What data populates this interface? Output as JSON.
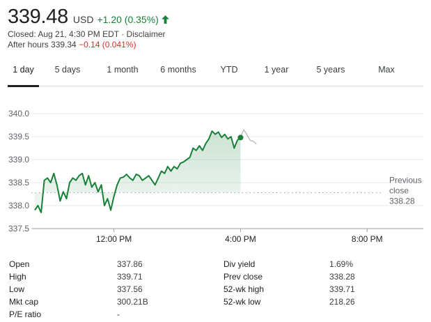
{
  "header": {
    "price": "339.48",
    "currency": "USD",
    "change": "+1.20 (0.35%)",
    "up_color": "#188038",
    "closed_line": "Closed: Aug 21, 4:30 PM EDT · Disclaimer",
    "after_hours_label": "After hours 339.34",
    "after_hours_change": "−0.14 (0.041%)",
    "down_color": "#d93025"
  },
  "tabs": [
    {
      "label": "1 day",
      "active": true
    },
    {
      "label": "5 days",
      "active": false
    },
    {
      "label": "1 month",
      "active": false
    },
    {
      "label": "6 months",
      "active": false
    },
    {
      "label": "YTD",
      "active": false
    },
    {
      "label": "1 year",
      "active": false
    },
    {
      "label": "5 years",
      "active": false
    },
    {
      "label": "Max",
      "active": false
    }
  ],
  "chart_data": {
    "type": "line",
    "yticks": [
      "340.0",
      "339.5",
      "339.0",
      "338.5",
      "338.0",
      "337.5"
    ],
    "ytick_values": [
      340.0,
      339.5,
      339.0,
      338.5,
      338.0,
      337.5
    ],
    "ylim": [
      337.5,
      340.0
    ],
    "xticks": [
      "12:00 PM",
      "4:00 PM",
      "8:00 PM"
    ],
    "xtick_values": [
      12,
      16,
      20
    ],
    "xlim": [
      9.5,
      20.5
    ],
    "previous_close": {
      "label_line1": "Previous",
      "label_line2": "close",
      "value": 338.28,
      "value_label": "338.28"
    },
    "line_color": "#188038",
    "after_hours_color": "#bdc1c6",
    "series": [
      {
        "session": "regular",
        "x": [
          9.5,
          9.6,
          9.7,
          9.8,
          9.9,
          10.0,
          10.1,
          10.2,
          10.3,
          10.4,
          10.5,
          10.6,
          10.7,
          10.8,
          10.9,
          11.0,
          11.1,
          11.2,
          11.3,
          11.4,
          11.5,
          11.6,
          11.7,
          11.8,
          11.9,
          12.0,
          12.1,
          12.2,
          12.3,
          12.4,
          12.5,
          12.6,
          12.7,
          12.8,
          12.9,
          13.0,
          13.1,
          13.2,
          13.3,
          13.4,
          13.5,
          13.6,
          13.7,
          13.8,
          13.9,
          14.0,
          14.1,
          14.2,
          14.3,
          14.4,
          14.5,
          14.6,
          14.7,
          14.8,
          14.9,
          15.0,
          15.1,
          15.2,
          15.3,
          15.4,
          15.5,
          15.6,
          15.7,
          15.8,
          15.9,
          16.0
        ],
        "y": [
          337.9,
          338.0,
          337.85,
          338.55,
          338.6,
          338.5,
          338.7,
          338.45,
          338.1,
          338.3,
          338.15,
          338.5,
          338.6,
          338.55,
          338.65,
          338.7,
          338.45,
          338.65,
          338.4,
          338.5,
          338.3,
          338.45,
          338.0,
          338.15,
          337.9,
          338.2,
          338.45,
          338.6,
          338.62,
          338.68,
          338.6,
          338.55,
          338.68,
          338.65,
          338.55,
          338.6,
          338.65,
          338.55,
          338.45,
          338.6,
          338.75,
          338.7,
          338.85,
          338.75,
          338.85,
          338.8,
          338.92,
          338.95,
          339.0,
          339.05,
          339.25,
          339.2,
          339.3,
          339.2,
          339.35,
          339.45,
          339.62,
          339.55,
          339.6,
          339.48,
          339.55,
          339.45,
          339.5,
          339.25,
          339.42,
          339.48
        ]
      },
      {
        "session": "after_hours",
        "x": [
          16.0,
          16.1,
          16.2,
          16.3,
          16.4,
          16.5
        ],
        "y": [
          339.48,
          339.65,
          339.55,
          339.42,
          339.4,
          339.34
        ]
      }
    ]
  },
  "stats": {
    "left": [
      {
        "label": "Open",
        "value": "337.86"
      },
      {
        "label": "High",
        "value": "339.71"
      },
      {
        "label": "Low",
        "value": "337.56"
      },
      {
        "label": "Mkt cap",
        "value": "300.21B"
      },
      {
        "label": "P/E ratio",
        "value": "-"
      }
    ],
    "right": [
      {
        "label": "Div yield",
        "value": "1.69%"
      },
      {
        "label": "Prev close",
        "value": "338.28"
      },
      {
        "label": "52-wk high",
        "value": "339.71"
      },
      {
        "label": "52-wk low",
        "value": "218.26"
      }
    ]
  }
}
